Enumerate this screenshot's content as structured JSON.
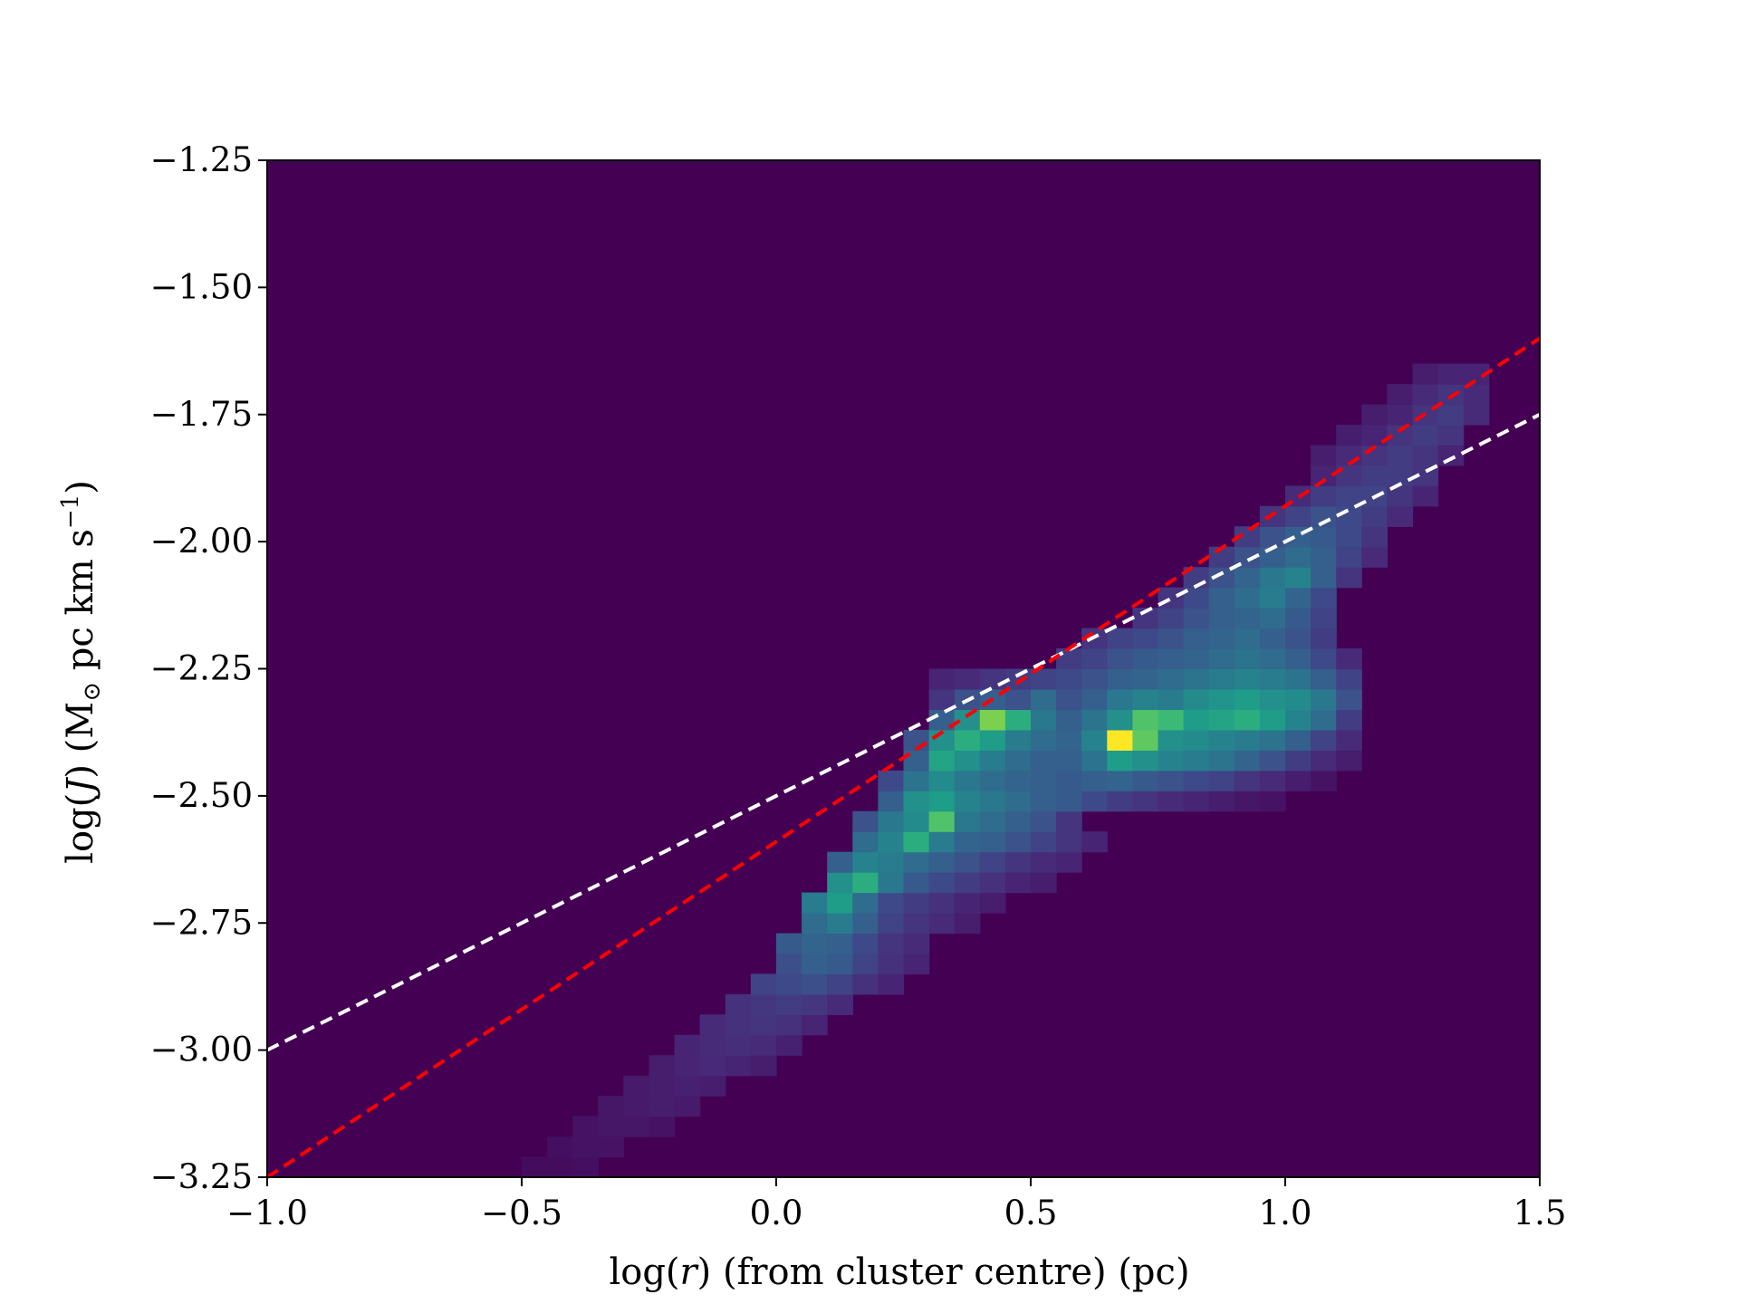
{
  "chart_data": {
    "type": "heatmap",
    "title": "",
    "xlabel": {
      "pre": "log(",
      "var": "r",
      "post": ") (from cluster centre) (pc)"
    },
    "ylabel": {
      "pre": "log(",
      "var": "J",
      "mid": ") (M",
      "sub": "⊙",
      "post": " pc km s",
      "sup": "−1",
      "end": ")"
    },
    "xlim": [
      -1.0,
      1.5
    ],
    "ylim": [
      -3.25,
      -1.25
    ],
    "xticks": [
      {
        "value": -1.0,
        "label": "−1.0"
      },
      {
        "value": -0.5,
        "label": "−0.5"
      },
      {
        "value": 0.0,
        "label": "0.0"
      },
      {
        "value": 0.5,
        "label": "0.5"
      },
      {
        "value": 1.0,
        "label": "1.0"
      },
      {
        "value": 1.5,
        "label": "1.5"
      }
    ],
    "yticks": [
      {
        "value": -1.25,
        "label": "−1.25"
      },
      {
        "value": -1.5,
        "label": "−1.50"
      },
      {
        "value": -1.75,
        "label": "−1.75"
      },
      {
        "value": -2.0,
        "label": "−2.00"
      },
      {
        "value": -2.25,
        "label": "−2.25"
      },
      {
        "value": -2.5,
        "label": "−2.50"
      },
      {
        "value": -2.75,
        "label": "−2.75"
      },
      {
        "value": -3.0,
        "label": "−3.00"
      },
      {
        "value": -3.25,
        "label": "−3.25"
      }
    ],
    "grid": false,
    "colormap": "viridis",
    "background_color": "#440154",
    "bins": {
      "x_start": -1.0,
      "x_step": 0.05,
      "y_start": -3.25,
      "y_step": 0.04
    },
    "cells": [
      [
        10,
        0,
        0.03
      ],
      [
        11,
        0,
        0.03
      ],
      [
        12,
        0,
        0.04
      ],
      [
        11,
        1,
        0.04
      ],
      [
        12,
        1,
        0.05
      ],
      [
        13,
        1,
        0.05
      ],
      [
        12,
        2,
        0.05
      ],
      [
        13,
        2,
        0.06
      ],
      [
        14,
        2,
        0.06
      ],
      [
        15,
        2,
        0.05
      ],
      [
        13,
        3,
        0.06
      ],
      [
        14,
        3,
        0.07
      ],
      [
        15,
        3,
        0.08
      ],
      [
        16,
        3,
        0.07
      ],
      [
        14,
        4,
        0.07
      ],
      [
        15,
        4,
        0.08
      ],
      [
        16,
        4,
        0.09
      ],
      [
        17,
        4,
        0.08
      ],
      [
        15,
        5,
        0.08
      ],
      [
        16,
        5,
        0.1
      ],
      [
        17,
        5,
        0.11
      ],
      [
        18,
        5,
        0.1
      ],
      [
        19,
        5,
        0.08
      ],
      [
        16,
        6,
        0.1
      ],
      [
        17,
        6,
        0.12
      ],
      [
        18,
        6,
        0.13
      ],
      [
        19,
        6,
        0.12
      ],
      [
        20,
        6,
        0.09
      ],
      [
        17,
        7,
        0.12
      ],
      [
        18,
        7,
        0.14
      ],
      [
        19,
        7,
        0.15
      ],
      [
        20,
        7,
        0.14
      ],
      [
        21,
        7,
        0.1
      ],
      [
        18,
        8,
        0.14
      ],
      [
        19,
        8,
        0.16
      ],
      [
        20,
        8,
        0.18
      ],
      [
        21,
        8,
        0.16
      ],
      [
        22,
        8,
        0.12
      ],
      [
        19,
        9,
        0.2
      ],
      [
        20,
        9,
        0.22
      ],
      [
        21,
        9,
        0.24
      ],
      [
        22,
        9,
        0.2
      ],
      [
        23,
        9,
        0.14
      ],
      [
        24,
        9,
        0.1
      ],
      [
        20,
        10,
        0.24
      ],
      [
        21,
        10,
        0.3
      ],
      [
        22,
        10,
        0.28
      ],
      [
        23,
        10,
        0.2
      ],
      [
        24,
        10,
        0.14
      ],
      [
        25,
        10,
        0.1
      ],
      [
        20,
        11,
        0.28
      ],
      [
        21,
        11,
        0.32
      ],
      [
        22,
        11,
        0.3
      ],
      [
        23,
        11,
        0.22
      ],
      [
        24,
        11,
        0.15
      ],
      [
        25,
        11,
        0.12
      ],
      [
        21,
        12,
        0.35
      ],
      [
        22,
        12,
        0.42
      ],
      [
        23,
        12,
        0.3
      ],
      [
        24,
        12,
        0.2
      ],
      [
        25,
        12,
        0.15
      ],
      [
        26,
        12,
        0.12
      ],
      [
        27,
        12,
        0.08
      ],
      [
        21,
        13,
        0.42
      ],
      [
        22,
        13,
        0.55
      ],
      [
        23,
        13,
        0.35
      ],
      [
        24,
        13,
        0.22
      ],
      [
        25,
        13,
        0.18
      ],
      [
        26,
        13,
        0.14
      ],
      [
        27,
        13,
        0.1
      ],
      [
        28,
        13,
        0.08
      ],
      [
        22,
        14,
        0.5
      ],
      [
        23,
        14,
        0.62
      ],
      [
        24,
        14,
        0.4
      ],
      [
        25,
        14,
        0.28
      ],
      [
        26,
        14,
        0.22
      ],
      [
        27,
        14,
        0.18
      ],
      [
        28,
        14,
        0.14
      ],
      [
        29,
        14,
        0.1
      ],
      [
        30,
        14,
        0.08
      ],
      [
        22,
        15,
        0.3
      ],
      [
        23,
        15,
        0.45
      ],
      [
        24,
        15,
        0.42
      ],
      [
        25,
        15,
        0.35
      ],
      [
        26,
        15,
        0.3
      ],
      [
        27,
        15,
        0.25
      ],
      [
        28,
        15,
        0.2
      ],
      [
        29,
        15,
        0.15
      ],
      [
        30,
        15,
        0.12
      ],
      [
        31,
        15,
        0.1
      ],
      [
        23,
        16,
        0.35
      ],
      [
        24,
        16,
        0.45
      ],
      [
        25,
        16,
        0.62
      ],
      [
        26,
        16,
        0.42
      ],
      [
        27,
        16,
        0.32
      ],
      [
        28,
        16,
        0.3
      ],
      [
        29,
        16,
        0.25
      ],
      [
        30,
        16,
        0.2
      ],
      [
        31,
        16,
        0.15
      ],
      [
        32,
        16,
        0.1
      ],
      [
        23,
        17,
        0.25
      ],
      [
        24,
        17,
        0.4
      ],
      [
        25,
        17,
        0.48
      ],
      [
        26,
        17,
        0.72
      ],
      [
        27,
        17,
        0.4
      ],
      [
        28,
        17,
        0.35
      ],
      [
        29,
        17,
        0.3
      ],
      [
        30,
        17,
        0.25
      ],
      [
        31,
        17,
        0.15
      ],
      [
        24,
        18,
        0.3
      ],
      [
        25,
        18,
        0.5
      ],
      [
        26,
        18,
        0.55
      ],
      [
        27,
        18,
        0.45
      ],
      [
        28,
        18,
        0.4
      ],
      [
        29,
        18,
        0.35
      ],
      [
        30,
        18,
        0.3
      ],
      [
        31,
        18,
        0.28
      ],
      [
        32,
        18,
        0.22
      ],
      [
        33,
        18,
        0.18
      ],
      [
        34,
        18,
        0.15
      ],
      [
        35,
        18,
        0.12
      ],
      [
        36,
        18,
        0.1
      ],
      [
        37,
        18,
        0.08
      ],
      [
        38,
        18,
        0.06
      ],
      [
        39,
        18,
        0.05
      ],
      [
        24,
        19,
        0.22
      ],
      [
        25,
        19,
        0.38
      ],
      [
        26,
        19,
        0.48
      ],
      [
        27,
        19,
        0.4
      ],
      [
        28,
        19,
        0.35
      ],
      [
        29,
        19,
        0.32
      ],
      [
        30,
        19,
        0.3
      ],
      [
        31,
        19,
        0.28
      ],
      [
        32,
        19,
        0.3
      ],
      [
        33,
        19,
        0.32
      ],
      [
        34,
        19,
        0.28
      ],
      [
        35,
        19,
        0.25
      ],
      [
        36,
        19,
        0.22
      ],
      [
        37,
        19,
        0.2
      ],
      [
        38,
        19,
        0.15
      ],
      [
        39,
        19,
        0.12
      ],
      [
        40,
        19,
        0.08
      ],
      [
        41,
        19,
        0.05
      ],
      [
        25,
        20,
        0.3
      ],
      [
        26,
        20,
        0.58
      ],
      [
        27,
        20,
        0.5
      ],
      [
        28,
        20,
        0.42
      ],
      [
        29,
        20,
        0.35
      ],
      [
        30,
        20,
        0.3
      ],
      [
        31,
        20,
        0.3
      ],
      [
        32,
        20,
        0.38
      ],
      [
        33,
        20,
        0.55
      ],
      [
        34,
        20,
        0.5
      ],
      [
        35,
        20,
        0.45
      ],
      [
        36,
        20,
        0.42
      ],
      [
        37,
        20,
        0.38
      ],
      [
        38,
        20,
        0.32
      ],
      [
        39,
        20,
        0.25
      ],
      [
        40,
        20,
        0.18
      ],
      [
        41,
        20,
        0.12
      ],
      [
        42,
        20,
        0.08
      ],
      [
        25,
        21,
        0.25
      ],
      [
        26,
        21,
        0.5
      ],
      [
        27,
        21,
        0.62
      ],
      [
        28,
        21,
        0.55
      ],
      [
        29,
        21,
        0.42
      ],
      [
        30,
        21,
        0.35
      ],
      [
        31,
        21,
        0.32
      ],
      [
        32,
        21,
        0.45
      ],
      [
        33,
        21,
        1.0
      ],
      [
        34,
        21,
        0.75
      ],
      [
        35,
        21,
        0.5
      ],
      [
        36,
        21,
        0.48
      ],
      [
        37,
        21,
        0.45
      ],
      [
        38,
        21,
        0.42
      ],
      [
        39,
        21,
        0.38
      ],
      [
        40,
        21,
        0.3
      ],
      [
        41,
        21,
        0.2
      ],
      [
        42,
        21,
        0.12
      ],
      [
        26,
        22,
        0.3
      ],
      [
        27,
        22,
        0.5
      ],
      [
        28,
        22,
        0.8
      ],
      [
        29,
        22,
        0.62
      ],
      [
        30,
        22,
        0.4
      ],
      [
        31,
        22,
        0.3
      ],
      [
        32,
        22,
        0.38
      ],
      [
        33,
        22,
        0.5
      ],
      [
        34,
        22,
        0.72
      ],
      [
        35,
        22,
        0.68
      ],
      [
        36,
        22,
        0.55
      ],
      [
        37,
        22,
        0.58
      ],
      [
        38,
        22,
        0.62
      ],
      [
        39,
        22,
        0.55
      ],
      [
        40,
        22,
        0.45
      ],
      [
        41,
        22,
        0.35
      ],
      [
        42,
        22,
        0.18
      ],
      [
        26,
        23,
        0.15
      ],
      [
        27,
        23,
        0.25
      ],
      [
        28,
        23,
        0.3
      ],
      [
        29,
        23,
        0.25
      ],
      [
        30,
        23,
        0.35
      ],
      [
        31,
        23,
        0.25
      ],
      [
        32,
        23,
        0.3
      ],
      [
        33,
        23,
        0.4
      ],
      [
        34,
        23,
        0.45
      ],
      [
        35,
        23,
        0.42
      ],
      [
        36,
        23,
        0.48
      ],
      [
        37,
        23,
        0.52
      ],
      [
        38,
        23,
        0.55
      ],
      [
        39,
        23,
        0.5
      ],
      [
        40,
        23,
        0.48
      ],
      [
        41,
        23,
        0.4
      ],
      [
        42,
        23,
        0.25
      ],
      [
        26,
        24,
        0.1
      ],
      [
        27,
        24,
        0.12
      ],
      [
        28,
        24,
        0.15
      ],
      [
        29,
        24,
        0.18
      ],
      [
        30,
        24,
        0.2
      ],
      [
        31,
        24,
        0.22
      ],
      [
        32,
        24,
        0.25
      ],
      [
        33,
        24,
        0.3
      ],
      [
        34,
        24,
        0.32
      ],
      [
        35,
        24,
        0.35
      ],
      [
        36,
        24,
        0.38
      ],
      [
        37,
        24,
        0.42
      ],
      [
        38,
        24,
        0.45
      ],
      [
        39,
        24,
        0.42
      ],
      [
        40,
        24,
        0.38
      ],
      [
        41,
        24,
        0.3
      ],
      [
        42,
        24,
        0.2
      ],
      [
        31,
        25,
        0.18
      ],
      [
        32,
        25,
        0.2
      ],
      [
        33,
        25,
        0.25
      ],
      [
        34,
        25,
        0.28
      ],
      [
        35,
        25,
        0.3
      ],
      [
        36,
        25,
        0.32
      ],
      [
        37,
        25,
        0.35
      ],
      [
        38,
        25,
        0.38
      ],
      [
        39,
        25,
        0.35
      ],
      [
        40,
        25,
        0.3
      ],
      [
        41,
        25,
        0.22
      ],
      [
        42,
        25,
        0.12
      ],
      [
        32,
        26,
        0.15
      ],
      [
        33,
        26,
        0.2
      ],
      [
        34,
        26,
        0.22
      ],
      [
        35,
        26,
        0.25
      ],
      [
        36,
        26,
        0.3
      ],
      [
        37,
        26,
        0.32
      ],
      [
        38,
        26,
        0.35
      ],
      [
        39,
        26,
        0.3
      ],
      [
        40,
        26,
        0.25
      ],
      [
        41,
        26,
        0.18
      ],
      [
        34,
        27,
        0.15
      ],
      [
        35,
        27,
        0.2
      ],
      [
        36,
        27,
        0.25
      ],
      [
        37,
        27,
        0.3
      ],
      [
        38,
        27,
        0.32
      ],
      [
        39,
        27,
        0.35
      ],
      [
        40,
        27,
        0.28
      ],
      [
        41,
        27,
        0.2
      ],
      [
        35,
        28,
        0.15
      ],
      [
        36,
        28,
        0.22
      ],
      [
        37,
        28,
        0.3
      ],
      [
        38,
        28,
        0.35
      ],
      [
        39,
        28,
        0.42
      ],
      [
        40,
        28,
        0.32
      ],
      [
        41,
        28,
        0.22
      ],
      [
        36,
        29,
        0.18
      ],
      [
        37,
        29,
        0.25
      ],
      [
        38,
        29,
        0.32
      ],
      [
        39,
        29,
        0.4
      ],
      [
        40,
        29,
        0.45
      ],
      [
        41,
        29,
        0.3
      ],
      [
        42,
        29,
        0.15
      ],
      [
        37,
        30,
        0.18
      ],
      [
        38,
        30,
        0.25
      ],
      [
        39,
        30,
        0.3
      ],
      [
        40,
        30,
        0.35
      ],
      [
        41,
        30,
        0.3
      ],
      [
        42,
        30,
        0.2
      ],
      [
        43,
        30,
        0.12
      ],
      [
        38,
        31,
        0.18
      ],
      [
        39,
        31,
        0.25
      ],
      [
        40,
        31,
        0.3
      ],
      [
        41,
        31,
        0.28
      ],
      [
        42,
        31,
        0.22
      ],
      [
        43,
        31,
        0.15
      ],
      [
        39,
        32,
        0.15
      ],
      [
        40,
        32,
        0.2
      ],
      [
        41,
        32,
        0.25
      ],
      [
        42,
        32,
        0.22
      ],
      [
        43,
        32,
        0.18
      ],
      [
        44,
        32,
        0.12
      ],
      [
        40,
        33,
        0.12
      ],
      [
        41,
        33,
        0.18
      ],
      [
        42,
        33,
        0.2
      ],
      [
        43,
        33,
        0.2
      ],
      [
        44,
        33,
        0.15
      ],
      [
        45,
        33,
        0.1
      ],
      [
        41,
        34,
        0.1
      ],
      [
        42,
        34,
        0.15
      ],
      [
        43,
        34,
        0.18
      ],
      [
        44,
        34,
        0.18
      ],
      [
        45,
        34,
        0.15
      ],
      [
        41,
        35,
        0.08
      ],
      [
        42,
        35,
        0.12
      ],
      [
        43,
        35,
        0.15
      ],
      [
        44,
        35,
        0.18
      ],
      [
        45,
        35,
        0.15
      ],
      [
        46,
        35,
        0.1
      ],
      [
        42,
        36,
        0.08
      ],
      [
        43,
        36,
        0.1
      ],
      [
        44,
        36,
        0.15
      ],
      [
        45,
        36,
        0.18
      ],
      [
        46,
        36,
        0.15
      ],
      [
        43,
        37,
        0.08
      ],
      [
        44,
        37,
        0.1
      ],
      [
        45,
        37,
        0.15
      ],
      [
        46,
        37,
        0.18
      ],
      [
        47,
        37,
        0.12
      ],
      [
        44,
        38,
        0.08
      ],
      [
        45,
        38,
        0.12
      ],
      [
        46,
        38,
        0.15
      ],
      [
        47,
        38,
        0.12
      ],
      [
        45,
        39,
        0.08
      ],
      [
        46,
        39,
        0.1
      ],
      [
        47,
        39,
        0.1
      ]
    ],
    "series": [
      {
        "type": "line",
        "style": "dashed",
        "color": "#ffffff",
        "x": [
          -1.0,
          1.5
        ],
        "y": [
          -3.0,
          -1.75
        ]
      },
      {
        "type": "line",
        "style": "dashed",
        "color": "#ff0000",
        "x": [
          -1.0,
          1.5
        ],
        "y": [
          -3.25,
          -1.6
        ]
      }
    ]
  }
}
